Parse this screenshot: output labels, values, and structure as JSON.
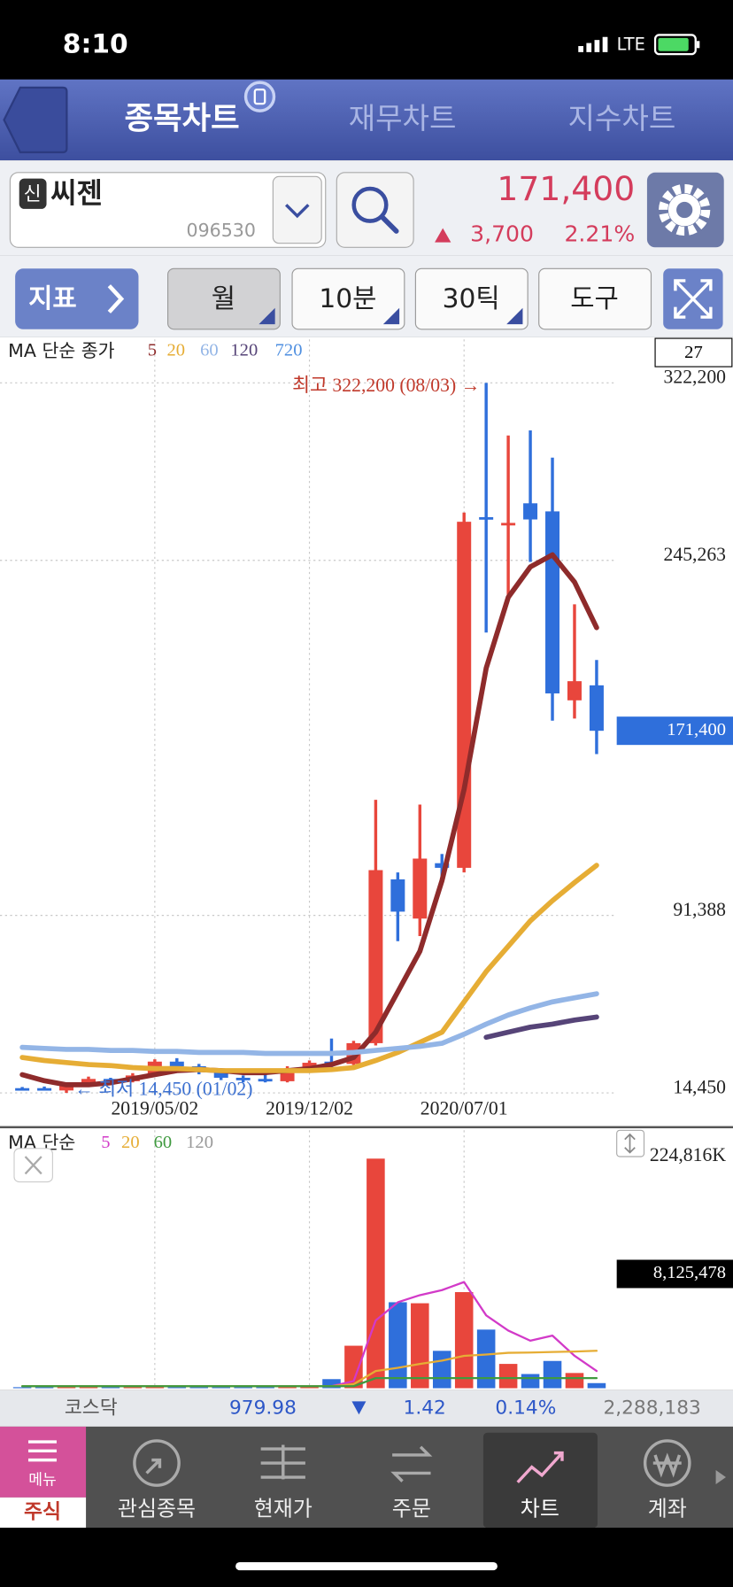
{
  "status_bar": {
    "time": "8:10",
    "network": "LTE"
  },
  "tabs": [
    "종목차트",
    "재무차트",
    "지수차트"
  ],
  "stock": {
    "badge": "신",
    "name": "씨젠",
    "code": "096530",
    "price": "171,400",
    "change": "3,700",
    "change_pct": "2.21%"
  },
  "toolbar": {
    "indicator": "지표",
    "period": "월",
    "interval": "10분",
    "ticks": "30틱",
    "tools": "도구"
  },
  "chart_data": [
    {
      "type": "candlestick",
      "legend_title": "MA 단순 종가",
      "count": 27,
      "categories": [
        null,
        null,
        null,
        null,
        null,
        null,
        "2019/05/02",
        null,
        null,
        null,
        null,
        null,
        null,
        "2019/12/02",
        null,
        null,
        null,
        null,
        null,
        null,
        "2020/07/01",
        null,
        null,
        null,
        null,
        null,
        null
      ],
      "open": [
        16500,
        16500,
        15500,
        17500,
        20500,
        19500,
        22000,
        28000,
        26000,
        23500,
        21000,
        20500,
        19500,
        25000,
        28000,
        27000,
        36000,
        107000,
        90000,
        114000,
        112000,
        264000,
        261000,
        270000,
        266500,
        184600,
        191100
      ],
      "high": [
        17000,
        17200,
        18000,
        21500,
        21000,
        23000,
        29000,
        29500,
        27000,
        24000,
        22000,
        22500,
        26000,
        28500,
        38000,
        37000,
        141500,
        110000,
        139400,
        118000,
        266000,
        322200,
        299400,
        301600,
        289800,
        226200,
        202100
      ],
      "low": [
        15500,
        15600,
        14450,
        17000,
        18500,
        19000,
        21500,
        25000,
        22500,
        20000,
        19000,
        19000,
        19000,
        24500,
        25500,
        26500,
        35000,
        80200,
        82400,
        105000,
        110000,
        214000,
        229000,
        244600,
        175800,
        176700,
        161300
      ],
      "close": [
        16000,
        16000,
        17500,
        20500,
        19500,
        22000,
        28000,
        26000,
        23500,
        21000,
        20000,
        19500,
        25000,
        27500,
        27000,
        36000,
        111000,
        93000,
        116000,
        112000,
        262000,
        263000,
        261500,
        263000,
        187600,
        192900,
        171400
      ],
      "up_color": "#e8463c",
      "down_color": "#2f6fdb",
      "series": [
        {
          "name": "5",
          "color": "#8e2b2b",
          "values": [
            22330,
            19700,
            17950,
            17950,
            18830,
            20580,
            22330,
            24090,
            24530,
            24090,
            23210,
            23210,
            24090,
            24970,
            26720,
            29790,
            40750,
            58280,
            75820,
            106500,
            145960,
            198570,
            229260,
            242410,
            247670,
            235840,
            216110
          ]
        },
        {
          "name": "20",
          "color": "#e6ad35",
          "values": [
            29790,
            28470,
            27600,
            26720,
            26280,
            25400,
            24970,
            24970,
            24530,
            24090,
            24090,
            24090,
            24090,
            24090,
            24530,
            25400,
            28470,
            31980,
            36360,
            40750,
            53900,
            67050,
            78010,
            88970,
            97740,
            105630,
            113080
          ]
        },
        {
          "name": "60",
          "color": "#93b5e6",
          "values": [
            34170,
            33730,
            33290,
            33290,
            32860,
            32860,
            32420,
            32420,
            31980,
            31980,
            31980,
            31540,
            31540,
            31540,
            31540,
            31980,
            32860,
            33730,
            34610,
            35920,
            39870,
            44250,
            48200,
            51270,
            53900,
            55650,
            57410
          ]
        },
        {
          "name": "120",
          "color": "#564478",
          "values": [
            null,
            null,
            null,
            null,
            null,
            null,
            null,
            null,
            null,
            null,
            null,
            null,
            null,
            null,
            null,
            null,
            null,
            null,
            null,
            null,
            null,
            38560,
            40750,
            42940,
            44250,
            46010,
            47320
          ]
        },
        {
          "name": "720",
          "color": "#4f8fe0",
          "values": [
            null,
            null,
            null,
            null,
            null,
            null,
            null,
            null,
            null,
            null,
            null,
            null,
            null,
            null,
            null,
            null,
            null,
            null,
            null,
            null,
            null,
            null,
            null,
            null,
            null,
            null,
            null
          ]
        }
      ],
      "ylim": [
        14450,
        322200
      ],
      "yticks": [
        {
          "value": 322200,
          "label": "322,200"
        },
        {
          "value": 245263,
          "label": "245,263"
        },
        {
          "value": 91388,
          "label": "91,388"
        },
        {
          "value": 14450,
          "label": "14,450"
        }
      ],
      "grid": true,
      "high_label": "최고 322,200 (08/03) →",
      "low_label": "← 최저 14,450 (01/02)",
      "last_value": {
        "value": 171400,
        "label": "171,400"
      }
    },
    {
      "type": "bar",
      "legend_title": "MA 단순",
      "values": [
        1000,
        1000,
        1000,
        1000,
        1000,
        1000,
        1000,
        1000,
        1000,
        1000,
        1000,
        1000,
        1000,
        1500,
        8900,
        41600,
        224816,
        84200,
        83200,
        36600,
        94100,
        57400,
        23800,
        13900,
        26700,
        14900,
        5000
      ],
      "ylim": [
        0,
        224816
      ],
      "yticks": [
        {
          "value": 224816,
          "label": "224,816K"
        }
      ],
      "marker_label": "8,125,478",
      "series": [
        {
          "name": "5",
          "color": "#d23ac8",
          "values": [
            null,
            null,
            null,
            null,
            null,
            null,
            null,
            null,
            null,
            null,
            null,
            null,
            null,
            null,
            1980,
            6930,
            66350,
            84180,
            91110,
            96070,
            103990,
            71310,
            56450,
            46550,
            51500,
            31690,
            16840
          ]
        },
        {
          "name": "20",
          "color": "#e6ad35",
          "values": [
            1980,
            1980,
            1980,
            1980,
            1980,
            1980,
            1980,
            1980,
            1980,
            1980,
            1980,
            1980,
            1980,
            1980,
            1980,
            3960,
            16840,
            20000,
            23770,
            27000,
            31690,
            33000,
            34660,
            35000,
            35500,
            36000,
            36640
          ]
        },
        {
          "name": "60",
          "color": "#3f9a3f",
          "values": [
            1980,
            1980,
            1980,
            1980,
            1980,
            1980,
            1980,
            1980,
            1980,
            1980,
            1980,
            1980,
            1980,
            1980,
            1980,
            1980,
            9900,
            9900,
            9900,
            9900,
            9900,
            9900,
            9900,
            9900,
            9900,
            9900,
            9900
          ]
        },
        {
          "name": "120",
          "color": "#999999",
          "values": [
            null,
            null,
            null,
            null,
            null,
            null,
            null,
            null,
            null,
            null,
            null,
            null,
            null,
            null,
            null,
            null,
            null,
            null,
            null,
            null,
            null,
            null,
            null,
            null,
            null,
            null,
            null
          ]
        }
      ]
    }
  ],
  "index_bar": {
    "name": "코스닥",
    "value": "979.98",
    "change": "1.42",
    "change_pct": "0.14%",
    "volume": "2,288,183"
  },
  "bottom_nav": {
    "menu_label": "메뉴",
    "menu_sub": "주식",
    "items": [
      "관심종목",
      "현재가",
      "주문",
      "차트",
      "계좌"
    ]
  }
}
